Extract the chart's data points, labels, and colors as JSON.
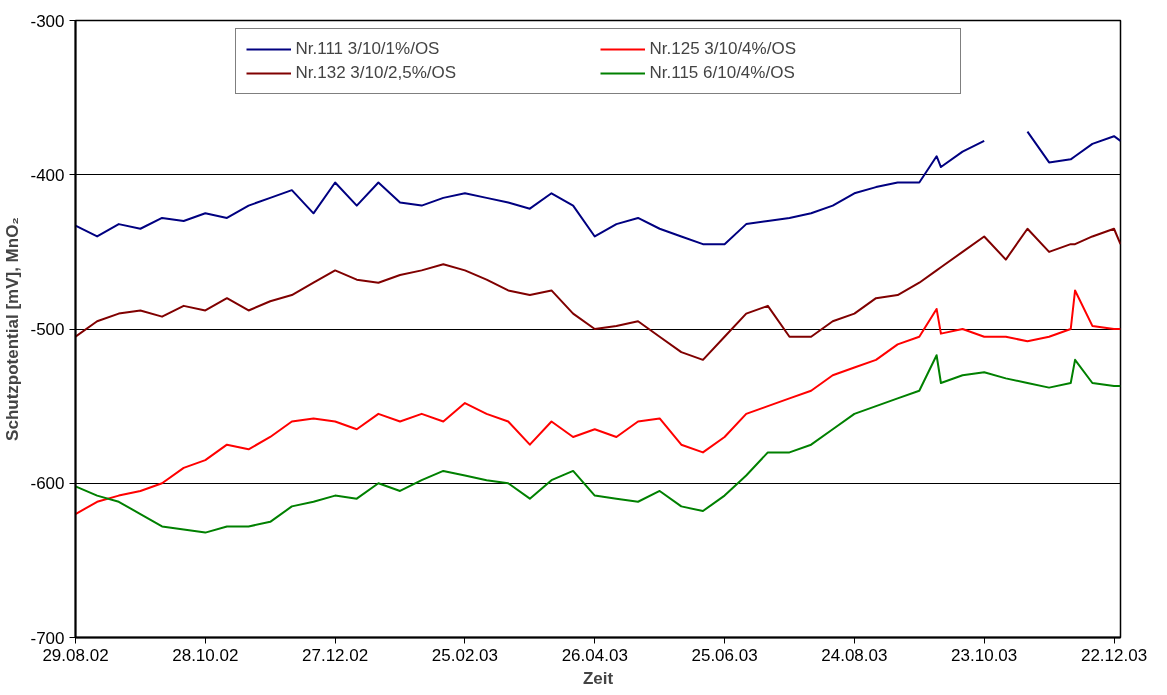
{
  "chart_data": {
    "type": "line",
    "xlabel": "Zeit",
    "ylabel": "Schutzpotential [mV], MnO₂",
    "x": [
      "2002-08-29",
      "2002-09-08",
      "2002-09-18",
      "2002-09-28",
      "2002-10-08",
      "2002-10-18",
      "2002-10-28",
      "2002-11-07",
      "2002-11-17",
      "2002-11-27",
      "2002-12-07",
      "2002-12-17",
      "2002-12-27",
      "2003-01-06",
      "2003-01-16",
      "2003-01-26",
      "2003-02-05",
      "2003-02-15",
      "2003-02-25",
      "2003-03-07",
      "2003-03-17",
      "2003-03-27",
      "2003-04-06",
      "2003-04-16",
      "2003-04-26",
      "2003-05-06",
      "2003-05-16",
      "2003-05-26",
      "2003-06-05",
      "2003-06-15",
      "2003-06-25",
      "2003-07-05",
      "2003-07-15",
      "2003-07-25",
      "2003-08-04",
      "2003-08-14",
      "2003-08-24",
      "2003-09-03",
      "2003-09-13",
      "2003-09-23",
      "2003-10-01",
      "2003-10-03",
      "2003-10-13",
      "2003-10-23",
      "2003-11-02",
      "2003-11-12",
      "2003-11-22",
      "2003-12-02",
      "2003-12-04",
      "2003-12-12",
      "2003-12-22",
      "2003-12-25"
    ],
    "series": [
      {
        "name": "Nr.111 3/10/1%/OS",
        "color": "#000080",
        "values": [
          -433,
          -440,
          -432,
          -435,
          -428,
          -430,
          -425,
          -428,
          -420,
          -415,
          -410,
          -425,
          -405,
          -420,
          -405,
          -418,
          -420,
          -415,
          -412,
          -415,
          -418,
          -422,
          -412,
          -420,
          -440,
          -432,
          -428,
          -435,
          -440,
          -445,
          -445,
          -432,
          -430,
          -428,
          -425,
          -420,
          -412,
          -408,
          -405,
          -405,
          -388,
          -395,
          -385,
          -378,
          null,
          -372,
          -392,
          -390,
          -388,
          -380,
          -375,
          -378
        ]
      },
      {
        "name": "Nr.132 3/10/2,5%/OS",
        "color": "#800000",
        "values": [
          -505,
          -495,
          -490,
          -488,
          -492,
          -485,
          -488,
          -480,
          -488,
          -482,
          -478,
          -470,
          -462,
          -468,
          -470,
          -465,
          -462,
          -458,
          -462,
          -468,
          -475,
          -478,
          -475,
          -490,
          -500,
          -498,
          -495,
          -505,
          -515,
          -520,
          -505,
          -490,
          -485,
          -505,
          -505,
          -495,
          -490,
          -480,
          -478,
          -470,
          -462,
          -460,
          -450,
          -440,
          -455,
          -435,
          -450,
          -445,
          -445,
          -440,
          -435,
          -445
        ]
      },
      {
        "name": "Nr.125 3/10/4%/OS",
        "color": "#ff0000",
        "values": [
          -620,
          -612,
          -608,
          -605,
          -600,
          -590,
          -585,
          -575,
          -578,
          -570,
          -560,
          -558,
          -560,
          -565,
          -555,
          -560,
          -555,
          -560,
          -548,
          -555,
          -560,
          -575,
          -560,
          -570,
          -565,
          -570,
          -560,
          -558,
          -575,
          -580,
          -570,
          -555,
          -550,
          -545,
          -540,
          -530,
          -525,
          -520,
          -510,
          -505,
          -487,
          -503,
          -500,
          -505,
          -505,
          -508,
          -505,
          -500,
          -475,
          -498,
          -500,
          -500
        ]
      },
      {
        "name": "Nr.115 6/10/4%/OS",
        "color": "#008000",
        "values": [
          -602,
          -608,
          -612,
          -620,
          -628,
          -630,
          -632,
          -628,
          -628,
          -625,
          -615,
          -612,
          -608,
          -610,
          -600,
          -605,
          -598,
          -592,
          -595,
          -598,
          -600,
          -610,
          -598,
          -592,
          -608,
          -610,
          -612,
          -605,
          -615,
          -618,
          -608,
          -595,
          -580,
          -580,
          -575,
          -565,
          -555,
          -550,
          -545,
          -540,
          -517,
          -535,
          -530,
          -528,
          -532,
          -535,
          -538,
          -535,
          -520,
          -535,
          -537,
          -537
        ]
      }
    ],
    "xlim": [
      "2002-08-29",
      "2003-12-25"
    ],
    "xticks": [
      {
        "value": "2002-08-29",
        "label": "29.08.02"
      },
      {
        "value": "2002-10-28",
        "label": "28.10.02"
      },
      {
        "value": "2002-12-27",
        "label": "27.12.02"
      },
      {
        "value": "2003-02-25",
        "label": "25.02.03"
      },
      {
        "value": "2003-04-26",
        "label": "26.04.03"
      },
      {
        "value": "2003-06-25",
        "label": "25.06.03"
      },
      {
        "value": "2003-08-24",
        "label": "24.08.03"
      },
      {
        "value": "2003-10-23",
        "label": "23.10.03"
      },
      {
        "value": "2003-12-22",
        "label": "22.12.03"
      }
    ],
    "ylim": [
      -700,
      -300
    ],
    "yticks": [
      -700,
      -600,
      -500,
      -400,
      -300
    ],
    "grid": "y",
    "legend": "top",
    "marker": "none",
    "line_style": "solid"
  }
}
